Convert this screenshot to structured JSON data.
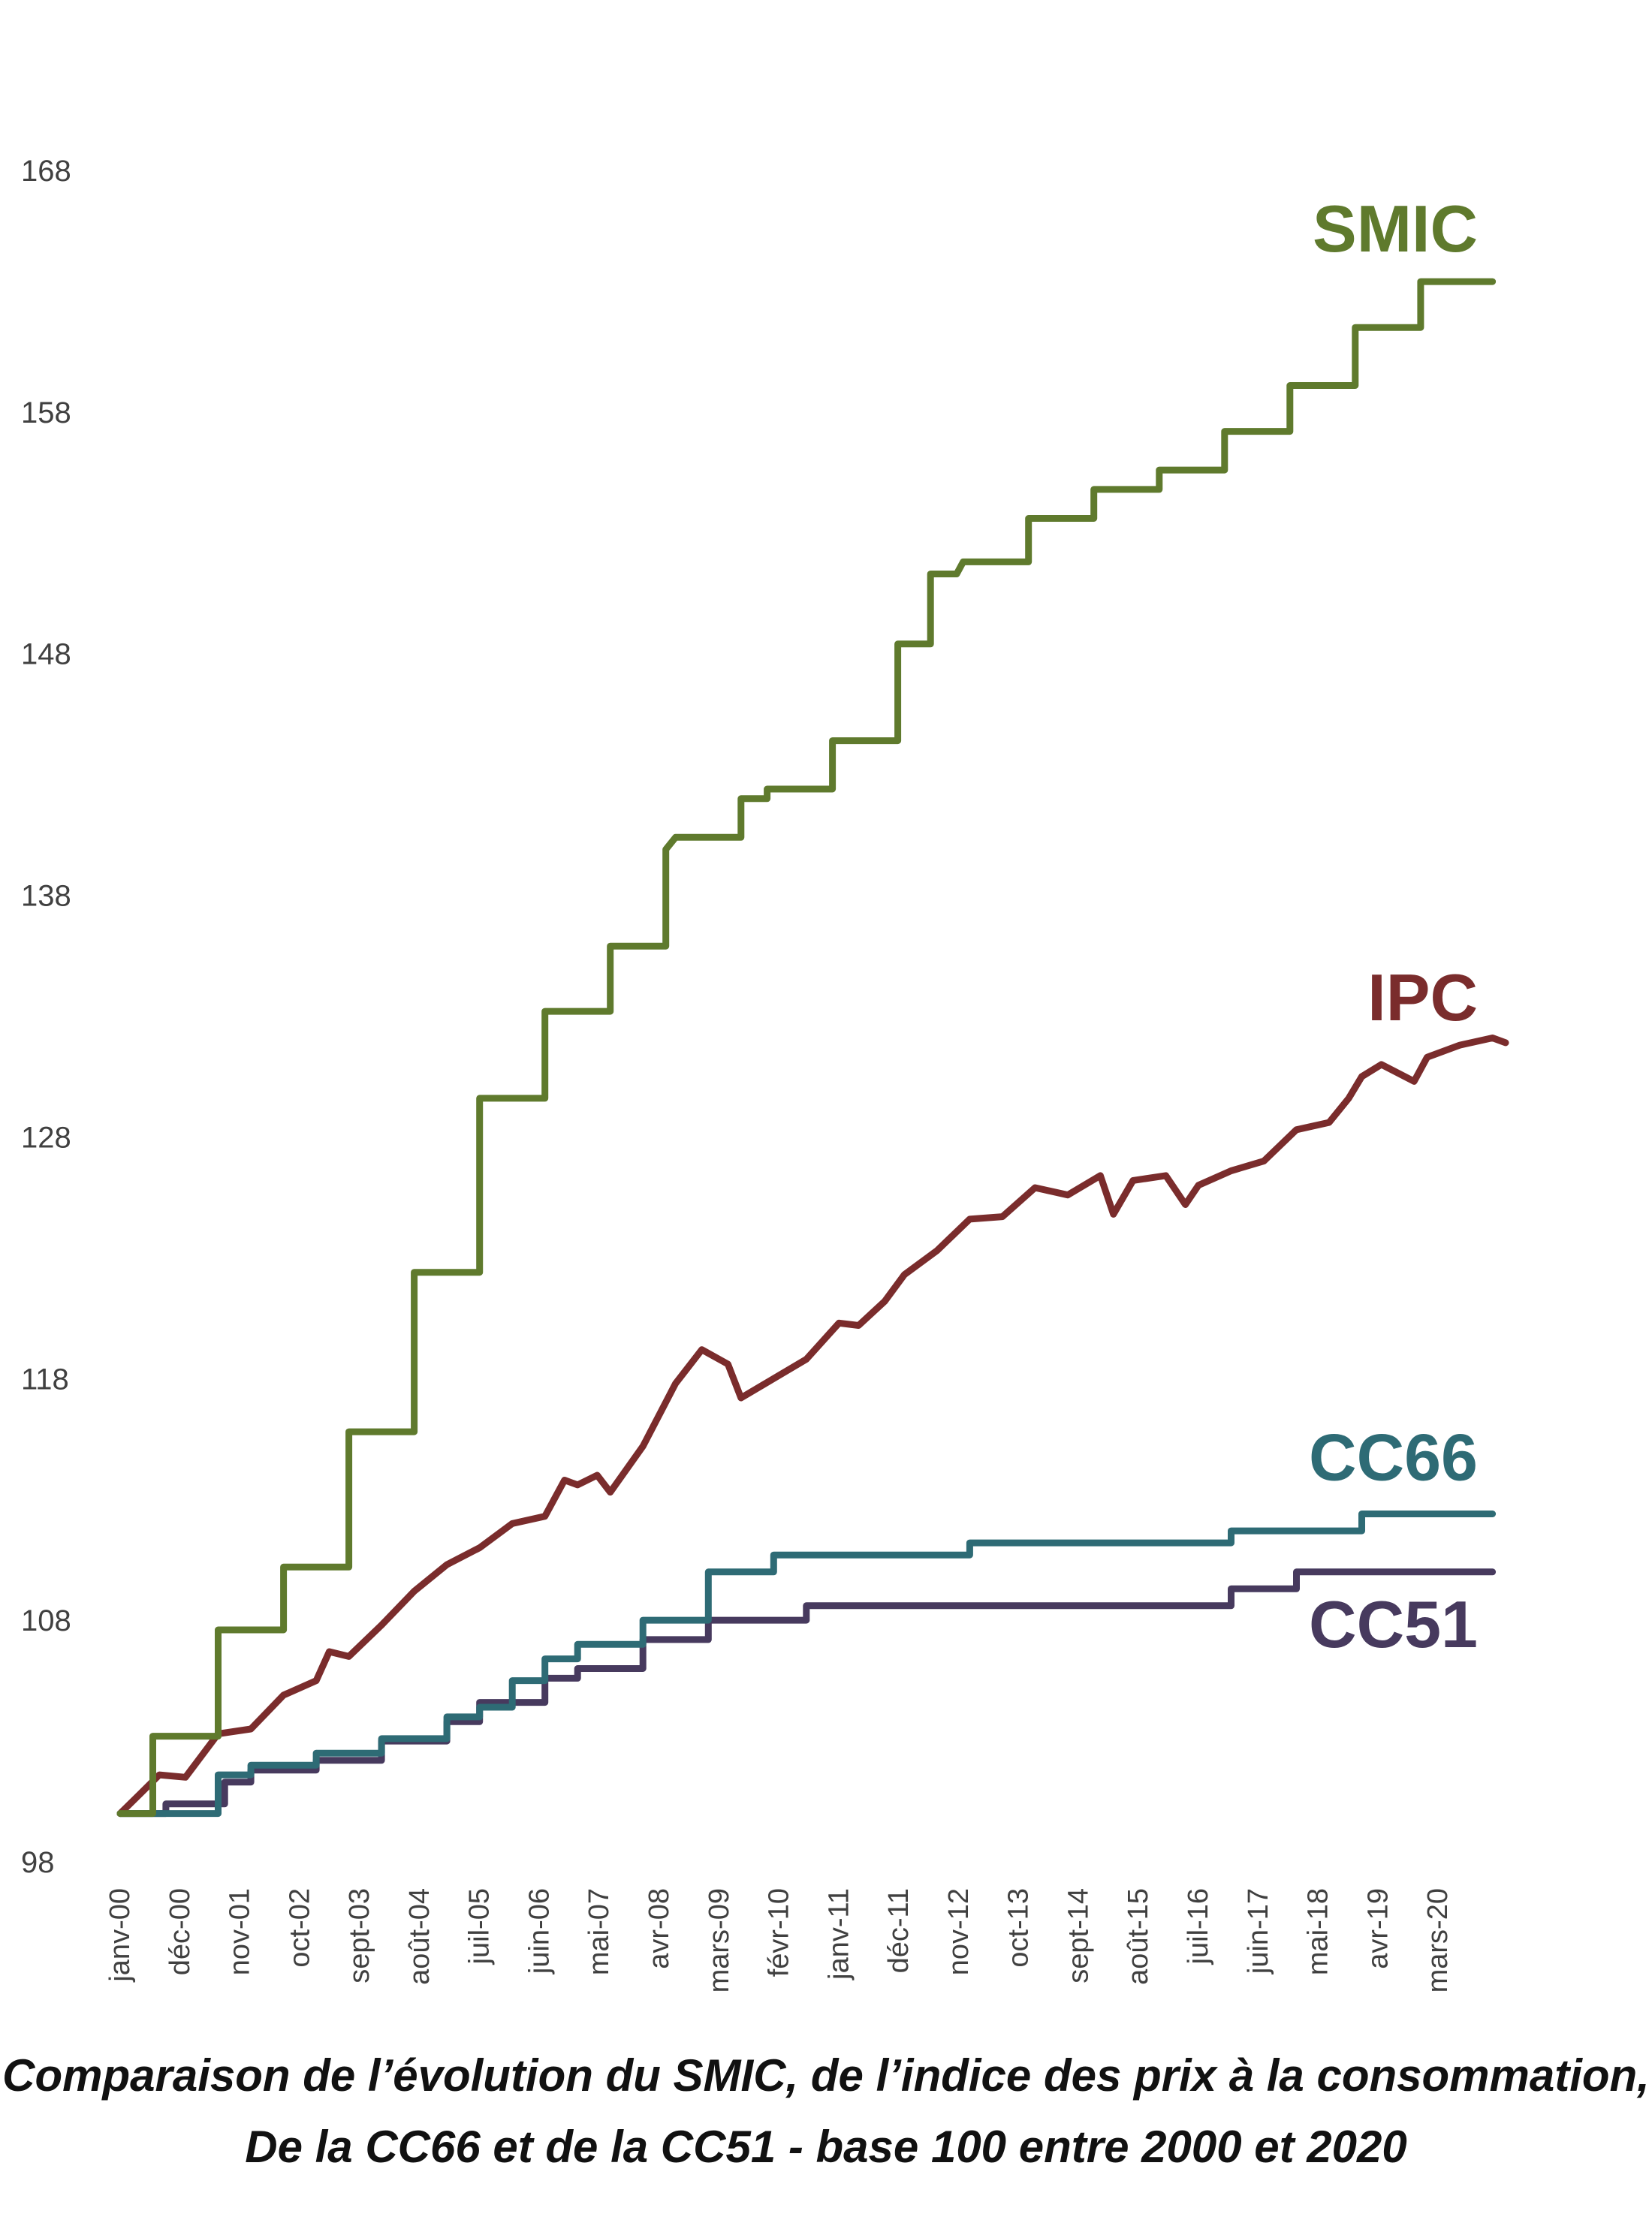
{
  "chart_data": {
    "type": "line",
    "title": "Comparaison de l’évolution du SMIC, de l’indice des prix à la consommation,",
    "subtitle": "De la CC66 et de la CC51 - base 100 entre 2000 et 2020",
    "xlabel": "",
    "ylabel": "",
    "ylim": [
      98,
      170
    ],
    "yticks": [
      98,
      108,
      118,
      128,
      138,
      148,
      158,
      168
    ],
    "xlim": [
      2000.0,
      2021.2
    ],
    "grid": false,
    "legend": "inline labels at line ends",
    "xticks": [
      {
        "label": "janv-00",
        "x": 2000.0
      },
      {
        "label": "déc-00",
        "x": 2000.917
      },
      {
        "label": "nov-01",
        "x": 2001.833
      },
      {
        "label": "oct-02",
        "x": 2002.75
      },
      {
        "label": "sept-03",
        "x": 2003.667
      },
      {
        "label": "août-04",
        "x": 2004.583
      },
      {
        "label": "juil-05",
        "x": 2005.5
      },
      {
        "label": "juin-06",
        "x": 2006.417
      },
      {
        "label": "mai-07",
        "x": 2007.333
      },
      {
        "label": "avr-08",
        "x": 2008.25
      },
      {
        "label": "mars-09",
        "x": 2009.167
      },
      {
        "label": "févr-10",
        "x": 2010.083
      },
      {
        "label": "janv-11",
        "x": 2011.0
      },
      {
        "label": "déc-11",
        "x": 2011.917
      },
      {
        "label": "nov-12",
        "x": 2012.833
      },
      {
        "label": "oct-13",
        "x": 2013.75
      },
      {
        "label": "sept-14",
        "x": 2014.667
      },
      {
        "label": "août-15",
        "x": 2015.583
      },
      {
        "label": "juil-16",
        "x": 2016.5
      },
      {
        "label": "juin-17",
        "x": 2017.417
      },
      {
        "label": "mai-18",
        "x": 2018.333
      },
      {
        "label": "avr-19",
        "x": 2019.25
      },
      {
        "label": "mars-20",
        "x": 2020.167
      }
    ],
    "series": [
      {
        "name": "SMIC",
        "color": "#5f7a2d",
        "step": true,
        "points": [
          [
            2000.0,
            100.0
          ],
          [
            2000.5,
            100.0
          ],
          [
            2000.5,
            103.2
          ],
          [
            2001.5,
            103.2
          ],
          [
            2001.5,
            107.6
          ],
          [
            2002.5,
            107.6
          ],
          [
            2002.5,
            110.2
          ],
          [
            2003.5,
            110.2
          ],
          [
            2003.5,
            115.8
          ],
          [
            2004.5,
            115.8
          ],
          [
            2004.5,
            122.4
          ],
          [
            2005.5,
            122.4
          ],
          [
            2005.5,
            129.6
          ],
          [
            2006.5,
            129.6
          ],
          [
            2006.5,
            133.2
          ],
          [
            2007.5,
            133.2
          ],
          [
            2007.5,
            135.9
          ],
          [
            2008.35,
            135.9
          ],
          [
            2008.35,
            139.9
          ],
          [
            2008.5,
            140.4
          ],
          [
            2009.5,
            140.4
          ],
          [
            2009.5,
            142.0
          ],
          [
            2009.9,
            142.0
          ],
          [
            2009.9,
            142.4
          ],
          [
            2010.9,
            142.4
          ],
          [
            2010.9,
            144.4
          ],
          [
            2011.9,
            144.4
          ],
          [
            2011.9,
            148.4
          ],
          [
            2012.4,
            148.4
          ],
          [
            2012.4,
            151.3
          ],
          [
            2012.8,
            151.3
          ],
          [
            2012.9,
            151.8
          ],
          [
            2013.9,
            151.8
          ],
          [
            2013.9,
            153.6
          ],
          [
            2014.9,
            153.6
          ],
          [
            2014.9,
            154.8
          ],
          [
            2015.9,
            154.8
          ],
          [
            2015.9,
            155.6
          ],
          [
            2016.9,
            155.6
          ],
          [
            2016.9,
            157.2
          ],
          [
            2017.9,
            157.2
          ],
          [
            2017.9,
            159.1
          ],
          [
            2018.9,
            159.1
          ],
          [
            2018.9,
            161.5
          ],
          [
            2019.9,
            161.5
          ],
          [
            2019.9,
            163.4
          ],
          [
            2021.0,
            163.4
          ]
        ]
      },
      {
        "name": "IPC",
        "color": "#7a2c2c",
        "step": false,
        "points": [
          [
            2000.0,
            100.0
          ],
          [
            2000.3,
            100.8
          ],
          [
            2000.6,
            101.6
          ],
          [
            2001.0,
            101.5
          ],
          [
            2001.5,
            103.3
          ],
          [
            2002.0,
            103.5
          ],
          [
            2002.5,
            104.9
          ],
          [
            2003.0,
            105.5
          ],
          [
            2003.2,
            106.7
          ],
          [
            2003.5,
            106.5
          ],
          [
            2004.0,
            107.8
          ],
          [
            2004.5,
            109.2
          ],
          [
            2005.0,
            110.3
          ],
          [
            2005.5,
            111.0
          ],
          [
            2006.0,
            112.0
          ],
          [
            2006.5,
            112.3
          ],
          [
            2006.8,
            113.8
          ],
          [
            2007.0,
            113.6
          ],
          [
            2007.3,
            114.0
          ],
          [
            2007.5,
            113.3
          ],
          [
            2008.0,
            115.2
          ],
          [
            2008.5,
            117.8
          ],
          [
            2008.9,
            119.2
          ],
          [
            2009.3,
            118.6
          ],
          [
            2009.5,
            117.2
          ],
          [
            2010.0,
            118.0
          ],
          [
            2010.5,
            118.8
          ],
          [
            2011.0,
            120.3
          ],
          [
            2011.3,
            120.2
          ],
          [
            2011.7,
            121.2
          ],
          [
            2012.0,
            122.3
          ],
          [
            2012.5,
            123.3
          ],
          [
            2013.0,
            124.6
          ],
          [
            2013.5,
            124.7
          ],
          [
            2014.0,
            125.9
          ],
          [
            2014.5,
            125.6
          ],
          [
            2015.0,
            126.4
          ],
          [
            2015.2,
            124.8
          ],
          [
            2015.5,
            126.2
          ],
          [
            2016.0,
            126.4
          ],
          [
            2016.3,
            125.2
          ],
          [
            2016.5,
            126.0
          ],
          [
            2017.0,
            126.6
          ],
          [
            2017.5,
            127.0
          ],
          [
            2018.0,
            128.3
          ],
          [
            2018.5,
            128.6
          ],
          [
            2018.8,
            129.6
          ],
          [
            2019.0,
            130.5
          ],
          [
            2019.3,
            131.0
          ],
          [
            2019.8,
            130.3
          ],
          [
            2020.0,
            131.3
          ],
          [
            2020.5,
            131.8
          ],
          [
            2021.0,
            132.1
          ],
          [
            2021.2,
            131.9
          ]
        ]
      },
      {
        "name": "CC66",
        "color": "#2e6b75",
        "step": true,
        "points": [
          [
            2000.0,
            100.0
          ],
          [
            2001.5,
            100.0
          ],
          [
            2001.5,
            101.6
          ],
          [
            2002.0,
            101.6
          ],
          [
            2002.0,
            102.0
          ],
          [
            2003.0,
            102.0
          ],
          [
            2003.0,
            102.5
          ],
          [
            2004.0,
            102.5
          ],
          [
            2004.0,
            103.1
          ],
          [
            2005.0,
            103.1
          ],
          [
            2005.0,
            104.0
          ],
          [
            2005.5,
            104.0
          ],
          [
            2005.5,
            104.4
          ],
          [
            2006.0,
            104.4
          ],
          [
            2006.0,
            105.5
          ],
          [
            2006.5,
            105.5
          ],
          [
            2006.5,
            106.4
          ],
          [
            2007.0,
            106.4
          ],
          [
            2007.0,
            107.0
          ],
          [
            2008.0,
            107.0
          ],
          [
            2008.0,
            108.0
          ],
          [
            2009.0,
            108.0
          ],
          [
            2009.0,
            110.0
          ],
          [
            2010.0,
            110.0
          ],
          [
            2010.0,
            110.7
          ],
          [
            2013.0,
            110.7
          ],
          [
            2013.0,
            111.2
          ],
          [
            2017.0,
            111.2
          ],
          [
            2017.0,
            111.7
          ],
          [
            2019.0,
            111.7
          ],
          [
            2019.0,
            112.4
          ],
          [
            2021.0,
            112.4
          ]
        ]
      },
      {
        "name": "CC51",
        "color": "#473a5e",
        "step": true,
        "points": [
          [
            2000.0,
            100.0
          ],
          [
            2000.7,
            100.0
          ],
          [
            2000.7,
            100.4
          ],
          [
            2001.6,
            100.4
          ],
          [
            2001.6,
            101.3
          ],
          [
            2002.0,
            101.3
          ],
          [
            2002.0,
            101.8
          ],
          [
            2003.0,
            101.8
          ],
          [
            2003.0,
            102.2
          ],
          [
            2004.0,
            102.2
          ],
          [
            2004.0,
            103.0
          ],
          [
            2005.0,
            103.0
          ],
          [
            2005.0,
            103.8
          ],
          [
            2005.5,
            103.8
          ],
          [
            2005.5,
            104.6
          ],
          [
            2006.5,
            104.6
          ],
          [
            2006.5,
            105.6
          ],
          [
            2007.0,
            105.6
          ],
          [
            2007.0,
            106.0
          ],
          [
            2008.0,
            106.0
          ],
          [
            2008.0,
            107.2
          ],
          [
            2009.0,
            107.2
          ],
          [
            2009.0,
            108.0
          ],
          [
            2010.5,
            108.0
          ],
          [
            2010.5,
            108.6
          ],
          [
            2017.0,
            108.6
          ],
          [
            2017.0,
            109.3
          ],
          [
            2018.0,
            109.3
          ],
          [
            2018.0,
            110.0
          ],
          [
            2021.0,
            110.0
          ]
        ]
      }
    ]
  }
}
